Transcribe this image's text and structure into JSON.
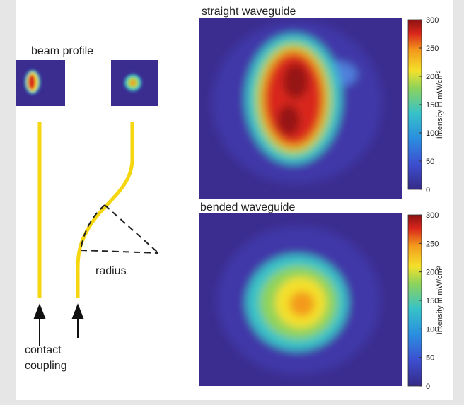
{
  "left": {
    "title": "beam profile",
    "radius_label": "radius",
    "arrow_label": [
      "contact",
      "coupling"
    ]
  },
  "panels": [
    {
      "title": "straight waveguide",
      "colorbar": {
        "label": "Intensity in mW/cm²",
        "lim": [
          0,
          300
        ],
        "ticks": [
          0,
          50,
          100,
          150,
          200,
          250,
          300
        ]
      }
    },
    {
      "title": "bended waveguide",
      "colorbar": {
        "label": "Intensity in mW/cm²",
        "lim": [
          0,
          300
        ],
        "ticks": [
          0,
          50,
          100,
          150,
          200,
          250,
          300
        ]
      }
    }
  ]
}
